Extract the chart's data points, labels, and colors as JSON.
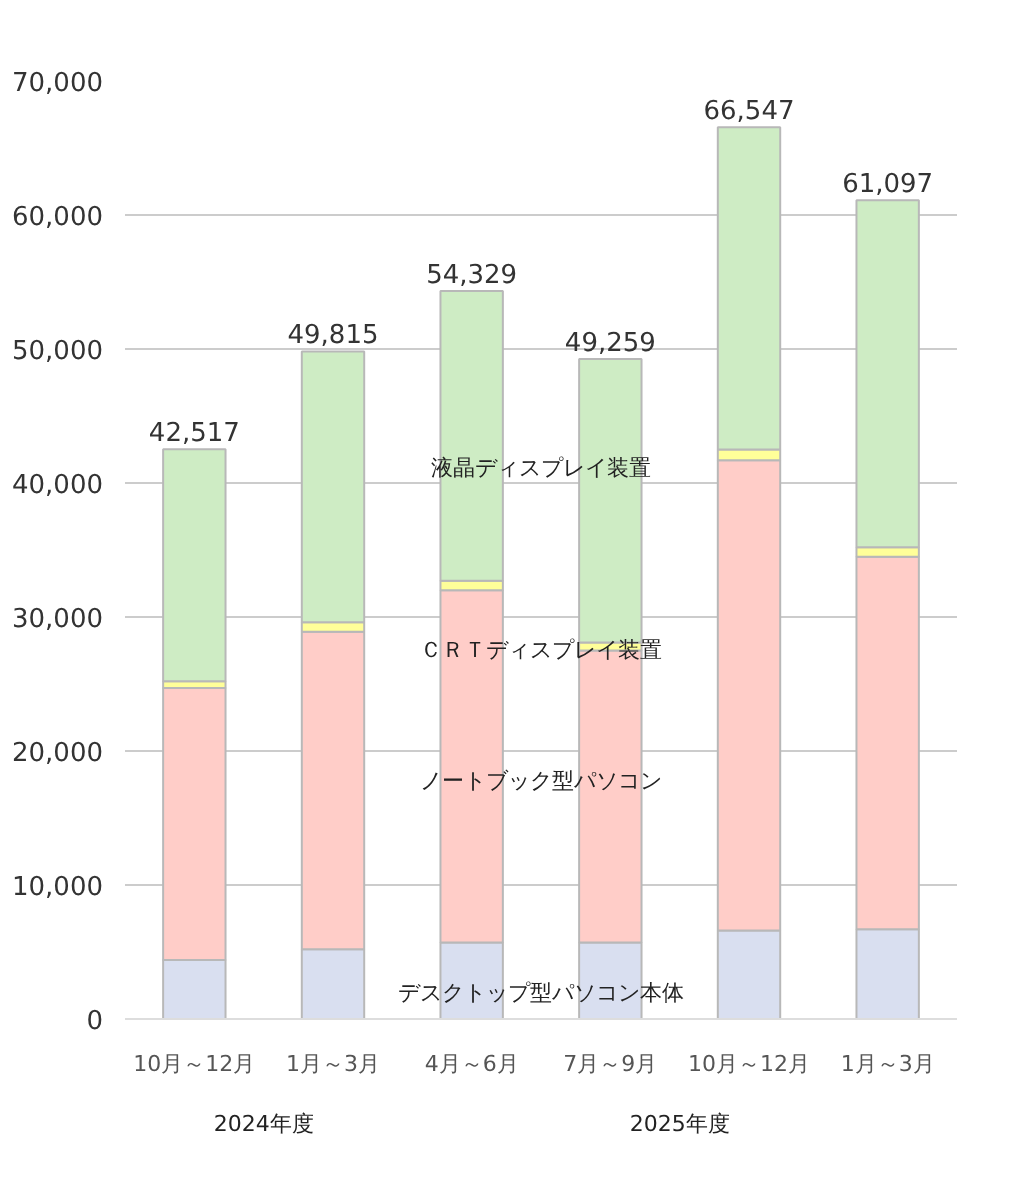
{
  "chart_data": {
    "type": "bar",
    "stacked": true,
    "categories": [
      "10月～12月",
      "1月～3月",
      "4月～6月",
      "7月～9月",
      "10月～12月",
      "1月～3月"
    ],
    "series": [
      {
        "name": "デスクトップ型パソコン本体",
        "color": "#d9dff0",
        "values": [
          4400,
          5200,
          5700,
          5700,
          6600,
          6700
        ]
      },
      {
        "name": "ノートブック型パソコン",
        "color": "#ffcdc8",
        "values": [
          20300,
          23700,
          26300,
          21800,
          35100,
          27800
        ]
      },
      {
        "name": "ＣＲＴディスプレイ装置",
        "color": "#ffff99",
        "values": [
          500,
          700,
          700,
          600,
          800,
          700
        ]
      },
      {
        "name": "液晶ディスプレイ装置",
        "color": "#ceecc4",
        "values": [
          17317,
          20215,
          21629,
          21159,
          24047,
          25897
        ]
      }
    ],
    "totals": [
      "42,517",
      "49,815",
      "54,329",
      "49,259",
      "66,547",
      "61,097"
    ],
    "annotations": [
      "2024年度",
      "2025年度"
    ],
    "ylim": [
      0,
      70000
    ],
    "yticks": [
      {
        "value": 0,
        "label": "0"
      },
      {
        "value": 10000,
        "label": "10,000"
      },
      {
        "value": 20000,
        "label": "20,000"
      },
      {
        "value": 30000,
        "label": "30,000"
      },
      {
        "value": 40000,
        "label": "40,000"
      },
      {
        "value": 50000,
        "label": "50,000"
      },
      {
        "value": 60000,
        "label": "60,000"
      },
      {
        "value": 70000,
        "label": "70,000"
      }
    ],
    "grid": "y"
  }
}
